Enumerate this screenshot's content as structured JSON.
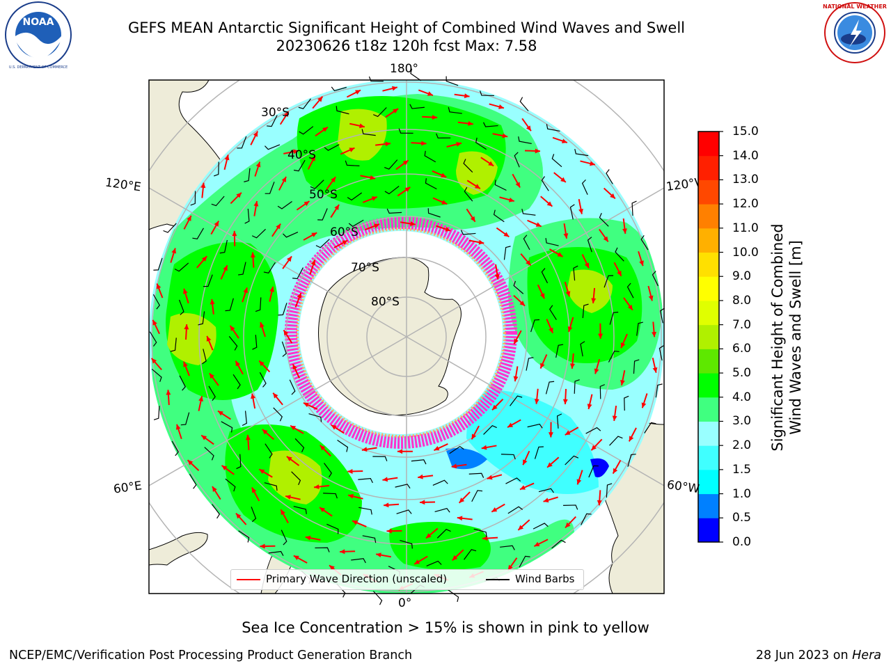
{
  "title_line1": "GEFS MEAN Antarctic Significant Height of Combined Wind Waves and Swell",
  "title_line2": "20230626 t18z 120h fcst   Max: 7.58",
  "logos": {
    "left": "NOAA",
    "right": "NATIONAL WEATHER SERVICE"
  },
  "map": {
    "projection": "south-polar-stereographic",
    "longitude_labels": {
      "top": "180°",
      "bottom": "0°",
      "left_upper": "120°E",
      "left_lower": "60°E",
      "right_upper": "120°W",
      "right_lower": "60°W"
    },
    "latitude_labels": [
      "30°S",
      "40°S",
      "50°S",
      "60°S",
      "70°S",
      "80°S"
    ],
    "colors": {
      "land": "#eeecd9",
      "ice_free_pole": "#ffffff",
      "graticule": "#b4b4b4",
      "sea_ice": "#ff33cc",
      "wave_arrow": "#ff0000",
      "wind_barb": "#000000"
    }
  },
  "colorbar": {
    "label": "Significant Height of Combined\nWind Waves and Swell [m]",
    "label_line1": "Significant Height of Combined",
    "label_line2": "Wind Waves and Swell [m]",
    "ticks": [
      "0.0",
      "0.5",
      "1.0",
      "1.5",
      "2.0",
      "3.0",
      "4.0",
      "5.0",
      "6.0",
      "7.0",
      "8.0",
      "9.0",
      "10.0",
      "11.0",
      "12.0",
      "13.0",
      "14.0",
      "15.0"
    ],
    "colors": [
      "#0000ff",
      "#0080ff",
      "#00ffff",
      "#40ffff",
      "#99ffff",
      "#40ff80",
      "#00ff00",
      "#5ee800",
      "#b0f000",
      "#e0ff00",
      "#ffff00",
      "#ffe000",
      "#ffb000",
      "#ff8000",
      "#ff4800",
      "#ff2000",
      "#ff0000"
    ]
  },
  "legend": {
    "items": [
      {
        "label": "Primary Wave Direction (unscaled)",
        "color": "#ff0000"
      },
      {
        "label": "Wind Barbs",
        "color": "#000000"
      }
    ]
  },
  "sea_ice_note": "Sea Ice Concentration > 15% is shown in pink to yellow",
  "footer": {
    "left": "NCEP/EMC/Verification Post Processing Product Generation Branch",
    "date": "28 Jun 2023 on",
    "host": "Hera"
  },
  "chart_data": {
    "type": "heatmap",
    "title": "GEFS MEAN Antarctic Significant Height of Combined Wind Waves and Swell",
    "subtitle": "20230626 t18z 120h fcst   Max: 7.58",
    "max_value": 7.58,
    "units": "m",
    "colorbar_range": [
      0,
      15
    ],
    "colorbar_boundaries": [
      0.0,
      0.5,
      1.0,
      1.5,
      2.0,
      3.0,
      4.0,
      5.0,
      6.0,
      7.0,
      8.0,
      9.0,
      10.0,
      11.0,
      12.0,
      13.0,
      14.0,
      15.0
    ],
    "overlays": [
      "Primary Wave Direction (unscaled)",
      "Wind Barbs",
      "Sea Ice Concentration > 15%"
    ]
  }
}
